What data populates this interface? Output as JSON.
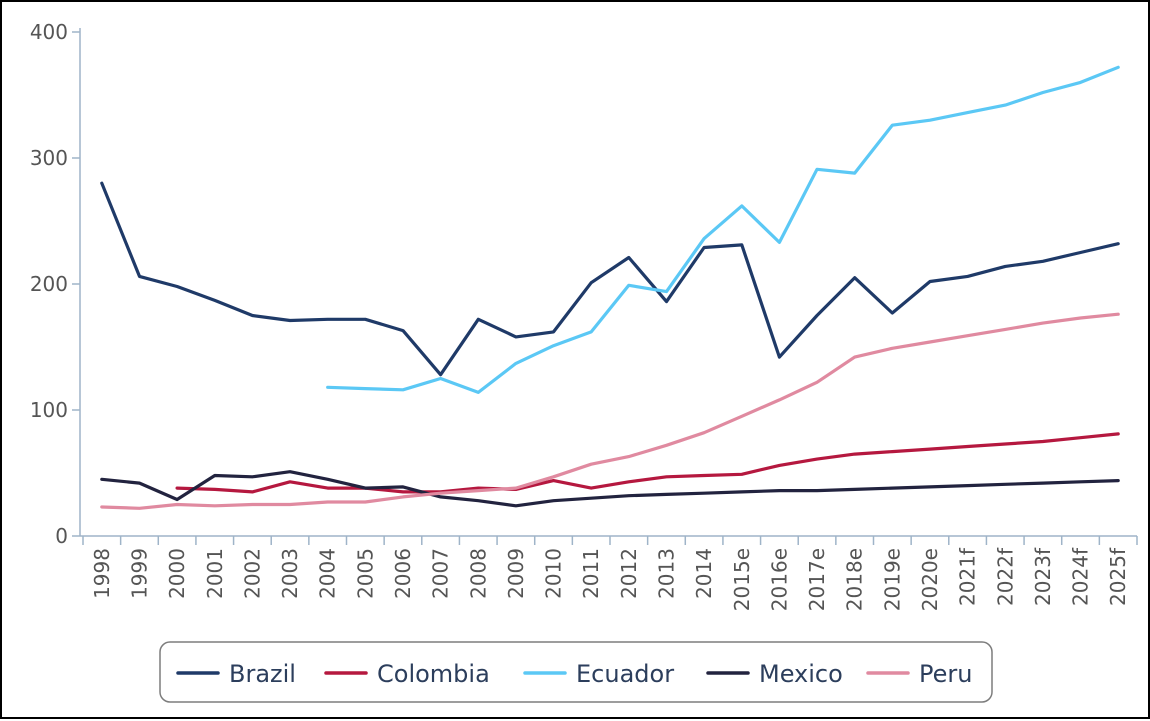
{
  "chart_data": {
    "type": "line",
    "title": "",
    "xlabel": "",
    "ylabel": "",
    "ylim": [
      0,
      400
    ],
    "yticks": [
      0,
      100,
      200,
      300,
      400
    ],
    "grid": false,
    "legend_position": "bottom",
    "categories": [
      "1998",
      "1999",
      "2000",
      "2001",
      "2002",
      "2003",
      "2004",
      "2005",
      "2006",
      "2007",
      "2008",
      "2009",
      "2010",
      "2011",
      "2012",
      "2013",
      "2014",
      "2015e",
      "2016e",
      "2017e",
      "2018e",
      "2019e",
      "2020e",
      "2021f",
      "2022f",
      "2023f",
      "2024f",
      "2025f"
    ],
    "series": [
      {
        "name": "Brazil",
        "color": "#1f3a68",
        "values": [
          280,
          206,
          198,
          187,
          175,
          171,
          172,
          172,
          163,
          128,
          172,
          158,
          162,
          201,
          221,
          186,
          229,
          231,
          142,
          175,
          205,
          177,
          202,
          206,
          214,
          218,
          225,
          232
        ]
      },
      {
        "name": "Colombia",
        "color": "#b5183f",
        "values": [
          null,
          null,
          38,
          37,
          35,
          43,
          38,
          38,
          35,
          35,
          38,
          37,
          44,
          38,
          43,
          47,
          48,
          49,
          56,
          61,
          65,
          67,
          69,
          71,
          73,
          75,
          78,
          81
        ]
      },
      {
        "name": "Ecuador",
        "color": "#5bc8f5",
        "values": [
          null,
          null,
          null,
          null,
          null,
          null,
          118,
          117,
          116,
          125,
          114,
          137,
          151,
          162,
          199,
          194,
          236,
          262,
          233,
          291,
          288,
          326,
          330,
          336,
          342,
          352,
          360,
          372
        ]
      },
      {
        "name": "Mexico",
        "color": "#22233f",
        "values": [
          45,
          42,
          29,
          48,
          47,
          51,
          45,
          38,
          39,
          31,
          28,
          24,
          28,
          30,
          32,
          33,
          34,
          35,
          36,
          36,
          37,
          38,
          39,
          40,
          41,
          42,
          43,
          44
        ]
      },
      {
        "name": "Peru",
        "color": "#e08aa0",
        "values": [
          23,
          22,
          25,
          24,
          25,
          25,
          27,
          27,
          31,
          34,
          36,
          38,
          47,
          57,
          63,
          72,
          82,
          95,
          108,
          122,
          142,
          149,
          154,
          159,
          164,
          169,
          173,
          176
        ]
      }
    ]
  }
}
